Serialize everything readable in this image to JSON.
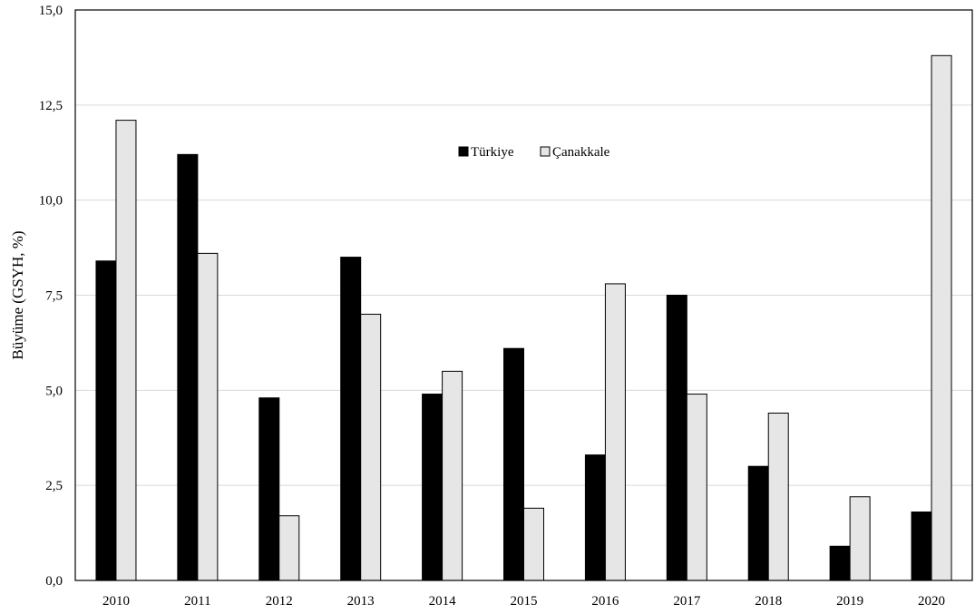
{
  "chart_data": {
    "type": "bar",
    "categories": [
      "2010",
      "2011",
      "2012",
      "2013",
      "2014",
      "2015",
      "2016",
      "2017",
      "2018",
      "2019",
      "2020"
    ],
    "series": [
      {
        "name": "Türkiye",
        "color": "#000000",
        "values": [
          8.4,
          11.2,
          4.8,
          8.5,
          4.9,
          6.1,
          3.3,
          7.5,
          3.0,
          0.9,
          1.8
        ]
      },
      {
        "name": "Çanakkale",
        "color": "#e6e6e6",
        "values": [
          12.1,
          8.6,
          1.7,
          7.0,
          5.5,
          1.9,
          7.8,
          4.9,
          4.4,
          2.2,
          13.8
        ]
      }
    ],
    "ylabel": "Büyüme (GSYH, %)",
    "xlabel": "",
    "ylim": [
      0,
      15
    ],
    "yticks": [
      "0,0",
      "2,5",
      "5,0",
      "7,5",
      "10,0",
      "12,5",
      "15,0"
    ],
    "grid": true,
    "legend_position": "top-center"
  }
}
